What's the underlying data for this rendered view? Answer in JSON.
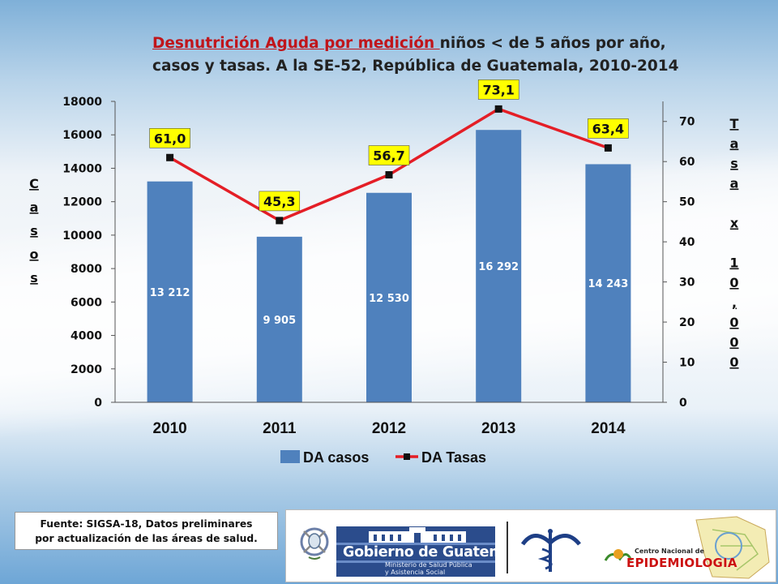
{
  "title": {
    "part1": "Desnutrición Aguda por medición ",
    "part2": " niños < de 5 años por año,",
    "line2": "casos y tasas. A la SE-52, República de Guatemala, 2010-2014"
  },
  "chart_data": {
    "type": "bar+line",
    "categories": [
      "2010",
      "2011",
      "2012",
      "2013",
      "2014"
    ],
    "series": [
      {
        "name": "DA casos",
        "type": "bar",
        "axis": "left",
        "values": [
          13212,
          9905,
          12530,
          16292,
          14243
        ],
        "labels": [
          "13 212",
          "9 905",
          "12 530",
          "16 292",
          "14 243"
        ],
        "color": "#4f81bd"
      },
      {
        "name": "DA Tasas",
        "type": "line",
        "axis": "right",
        "values": [
          61.0,
          45.3,
          56.7,
          73.1,
          63.4
        ],
        "labels": [
          "61,0",
          "45,3",
          "56,7",
          "73,1",
          "63,4"
        ],
        "color": "#e41e26",
        "marker_color": "#111111",
        "label_bg": "#ffff00"
      }
    ],
    "y_left": {
      "label": "Casos",
      "min": 0,
      "max": 18000,
      "ticks": [
        "0",
        "2000",
        "4000",
        "6000",
        "8000",
        "10000",
        "12000",
        "14000",
        "16000",
        "18000"
      ]
    },
    "y_right": {
      "label": "Tasa x 10,000",
      "label_chars": [
        "T",
        "a",
        "s",
        "a",
        "",
        "x",
        "",
        "1",
        "0",
        ",",
        "0",
        "0",
        "0"
      ],
      "min": 0,
      "max": 75,
      "ticks": [
        "0",
        "10",
        "20",
        "30",
        "40",
        "50",
        "60",
        "70"
      ]
    },
    "legend": {
      "position": "bottom",
      "items": [
        "DA casos",
        "DA Tasas"
      ]
    }
  },
  "footer": {
    "source_line1": "Fuente: SIGSA-18, Datos preliminares",
    "source_line2": "por actualización de las áreas de salud.",
    "gov_name": "Gobierno de Guatemala",
    "gov_sub1": "Ministerio de Salud Pública",
    "gov_sub2": "y Asistencia Social",
    "epi_top": "Centro Nacional de",
    "epi_main": "EPIDEMIOLOGIA"
  }
}
